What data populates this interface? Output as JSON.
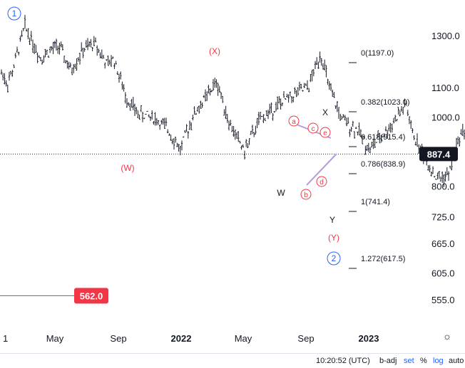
{
  "chart_data": {
    "type": "ohlc",
    "price_axis": {
      "ticks": [
        "1300.0",
        "1100.0",
        "1000.0",
        "800.0",
        "725.0",
        "665.0",
        "605.0",
        "555.0"
      ],
      "scale": "log"
    },
    "time_axis": {
      "ticks": [
        "1",
        "May",
        "Sep",
        "2022",
        "May",
        "Sep",
        "2023"
      ]
    },
    "current_price": "887.4",
    "alert_price": "562.0",
    "fib_levels": [
      {
        "label": "0(1197.0)",
        "value": 1197.0
      },
      {
        "label": "0.382(1023.0)",
        "value": 1023.0
      },
      {
        "label": "0.618(915.4)",
        "value": 915.4
      },
      {
        "label": "0.786(838.9)",
        "value": 838.9
      },
      {
        "label": "1(741.4)",
        "value": 741.4
      },
      {
        "label": "1.272(617.5)",
        "value": 617.5
      }
    ],
    "wave_labels": {
      "circle_1": "1",
      "paren_X": "(X)",
      "paren_W": "(W)",
      "paren_Y": "(Y)",
      "circle_2": "2",
      "W": "W",
      "X": "X",
      "Y": "Y",
      "a": "a",
      "b": "b",
      "c": "c",
      "d": "d",
      "e": "e"
    },
    "price_path": [
      {
        "x": 0,
        "y": 1150
      },
      {
        "x": 0.05,
        "y": 1110
      },
      {
        "x": 0.15,
        "y": 1160
      },
      {
        "x": 0.35,
        "y": 1340
      },
      {
        "x": 0.6,
        "y": 1210
      },
      {
        "x": 0.9,
        "y": 1260
      },
      {
        "x": 1.1,
        "y": 1160
      },
      {
        "x": 1.3,
        "y": 1240
      },
      {
        "x": 1.5,
        "y": 1270
      },
      {
        "x": 1.7,
        "y": 1180
      },
      {
        "x": 1.8,
        "y": 1210
      },
      {
        "x": 2.0,
        "y": 1070
      },
      {
        "x": 2.2,
        "y": 1010
      },
      {
        "x": 2.45,
        "y": 1000
      },
      {
        "x": 2.7,
        "y": 960
      },
      {
        "x": 2.9,
        "y": 900
      },
      {
        "x": 3.1,
        "y": 1000
      },
      {
        "x": 3.5,
        "y": 1120
      },
      {
        "x": 3.7,
        "y": 980
      },
      {
        "x": 3.95,
        "y": 895
      },
      {
        "x": 4.2,
        "y": 990
      },
      {
        "x": 4.5,
        "y": 1040
      },
      {
        "x": 4.8,
        "y": 1080
      },
      {
        "x": 5.0,
        "y": 1100
      },
      {
        "x": 5.2,
        "y": 1230
      },
      {
        "x": 5.35,
        "y": 1090
      },
      {
        "x": 5.55,
        "y": 990
      },
      {
        "x": 5.8,
        "y": 960
      },
      {
        "x": 6.0,
        "y": 900
      },
      {
        "x": 6.3,
        "y": 960
      },
      {
        "x": 6.6,
        "y": 1040
      },
      {
        "x": 6.7,
        "y": 950
      },
      {
        "x": 6.9,
        "y": 880
      },
      {
        "x": 7.1,
        "y": 820
      },
      {
        "x": 7.3,
        "y": 830
      },
      {
        "x": 7.5,
        "y": 950
      },
      {
        "x": 7.65,
        "y": 970
      },
      {
        "x": 7.85,
        "y": 850
      },
      {
        "x": 8.0,
        "y": 800
      },
      {
        "x": 8.15,
        "y": 860
      },
      {
        "x": 8.35,
        "y": 940
      },
      {
        "x": 8.55,
        "y": 830
      },
      {
        "x": 8.75,
        "y": 940
      },
      {
        "x": 8.9,
        "y": 887
      }
    ]
  },
  "bottom_bar": {
    "time": "10:20:52 (UTC)",
    "badj": "b-adj",
    "set": "set",
    "pct": "%",
    "log": "log",
    "auto": "auto"
  },
  "colors": {
    "wave_red": "#f23645",
    "wave_blue": "#2962ff",
    "triangle": "#b39ddb",
    "bars": "#131722",
    "axis_text": "#131722",
    "price_line": "#131722",
    "alert_red": "#f23645"
  }
}
